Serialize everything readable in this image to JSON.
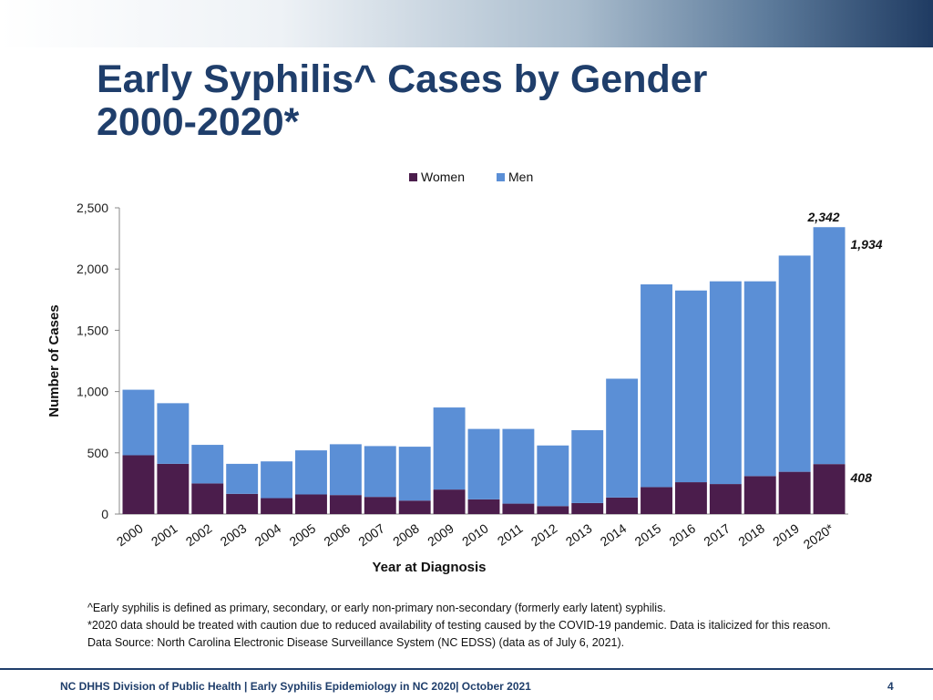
{
  "slide": {
    "title_line1": "Early Syphilis^ Cases by Gender",
    "title_line2": "2000-2020*",
    "notes": [
      "^Early syphilis is defined as primary, secondary, or early non-primary non-secondary (formerly early latent) syphilis.",
      "*2020 data should be treated with caution due to reduced availability of testing caused by the COVID-19 pandemic. Data is italicized for this reason.",
      "Data Source: North Carolina Electronic Disease Surveillance System (NC EDSS) (data as of July 6, 2021)."
    ],
    "footer": "NC DHHS Division of Public Health | Early Syphilis Epidemiology in NC 2020| October 2021",
    "page_number": "4"
  },
  "chart_data": {
    "type": "bar",
    "stacked": true,
    "title": "",
    "xlabel": "Year at Diagnosis",
    "ylabel": "Number of Cases",
    "ylim": [
      0,
      2500
    ],
    "yticks": [
      0,
      500,
      1000,
      1500,
      2000,
      2500
    ],
    "ytick_labels": [
      "0",
      "500",
      "1,000",
      "1,500",
      "2,000",
      "2,500"
    ],
    "legend_position": "top-center",
    "categories": [
      "2000",
      "2001",
      "2002",
      "2003",
      "2004",
      "2005",
      "2006",
      "2007",
      "2008",
      "2009",
      "2010",
      "2011",
      "2012",
      "2013",
      "2014",
      "2015",
      "2016",
      "2017",
      "2018",
      "2019",
      "2020*"
    ],
    "series": [
      {
        "name": "Women",
        "color": "#4b1d4c",
        "values": [
          480,
          410,
          250,
          165,
          130,
          160,
          155,
          140,
          110,
          200,
          120,
          85,
          65,
          90,
          135,
          220,
          260,
          245,
          310,
          345,
          408
        ]
      },
      {
        "name": "Men",
        "color": "#5b8fd6",
        "values": [
          535,
          495,
          315,
          245,
          300,
          360,
          415,
          415,
          440,
          670,
          575,
          610,
          495,
          595,
          970,
          1655,
          1565,
          1655,
          1590,
          1765,
          1934
        ]
      }
    ],
    "annotations": [
      {
        "text": "2,342",
        "category": "2020*",
        "anchor": "total"
      },
      {
        "text": "1,934",
        "category": "2020*",
        "anchor": "men-side"
      },
      {
        "text": "408",
        "category": "2020*",
        "anchor": "women-side"
      }
    ]
  }
}
